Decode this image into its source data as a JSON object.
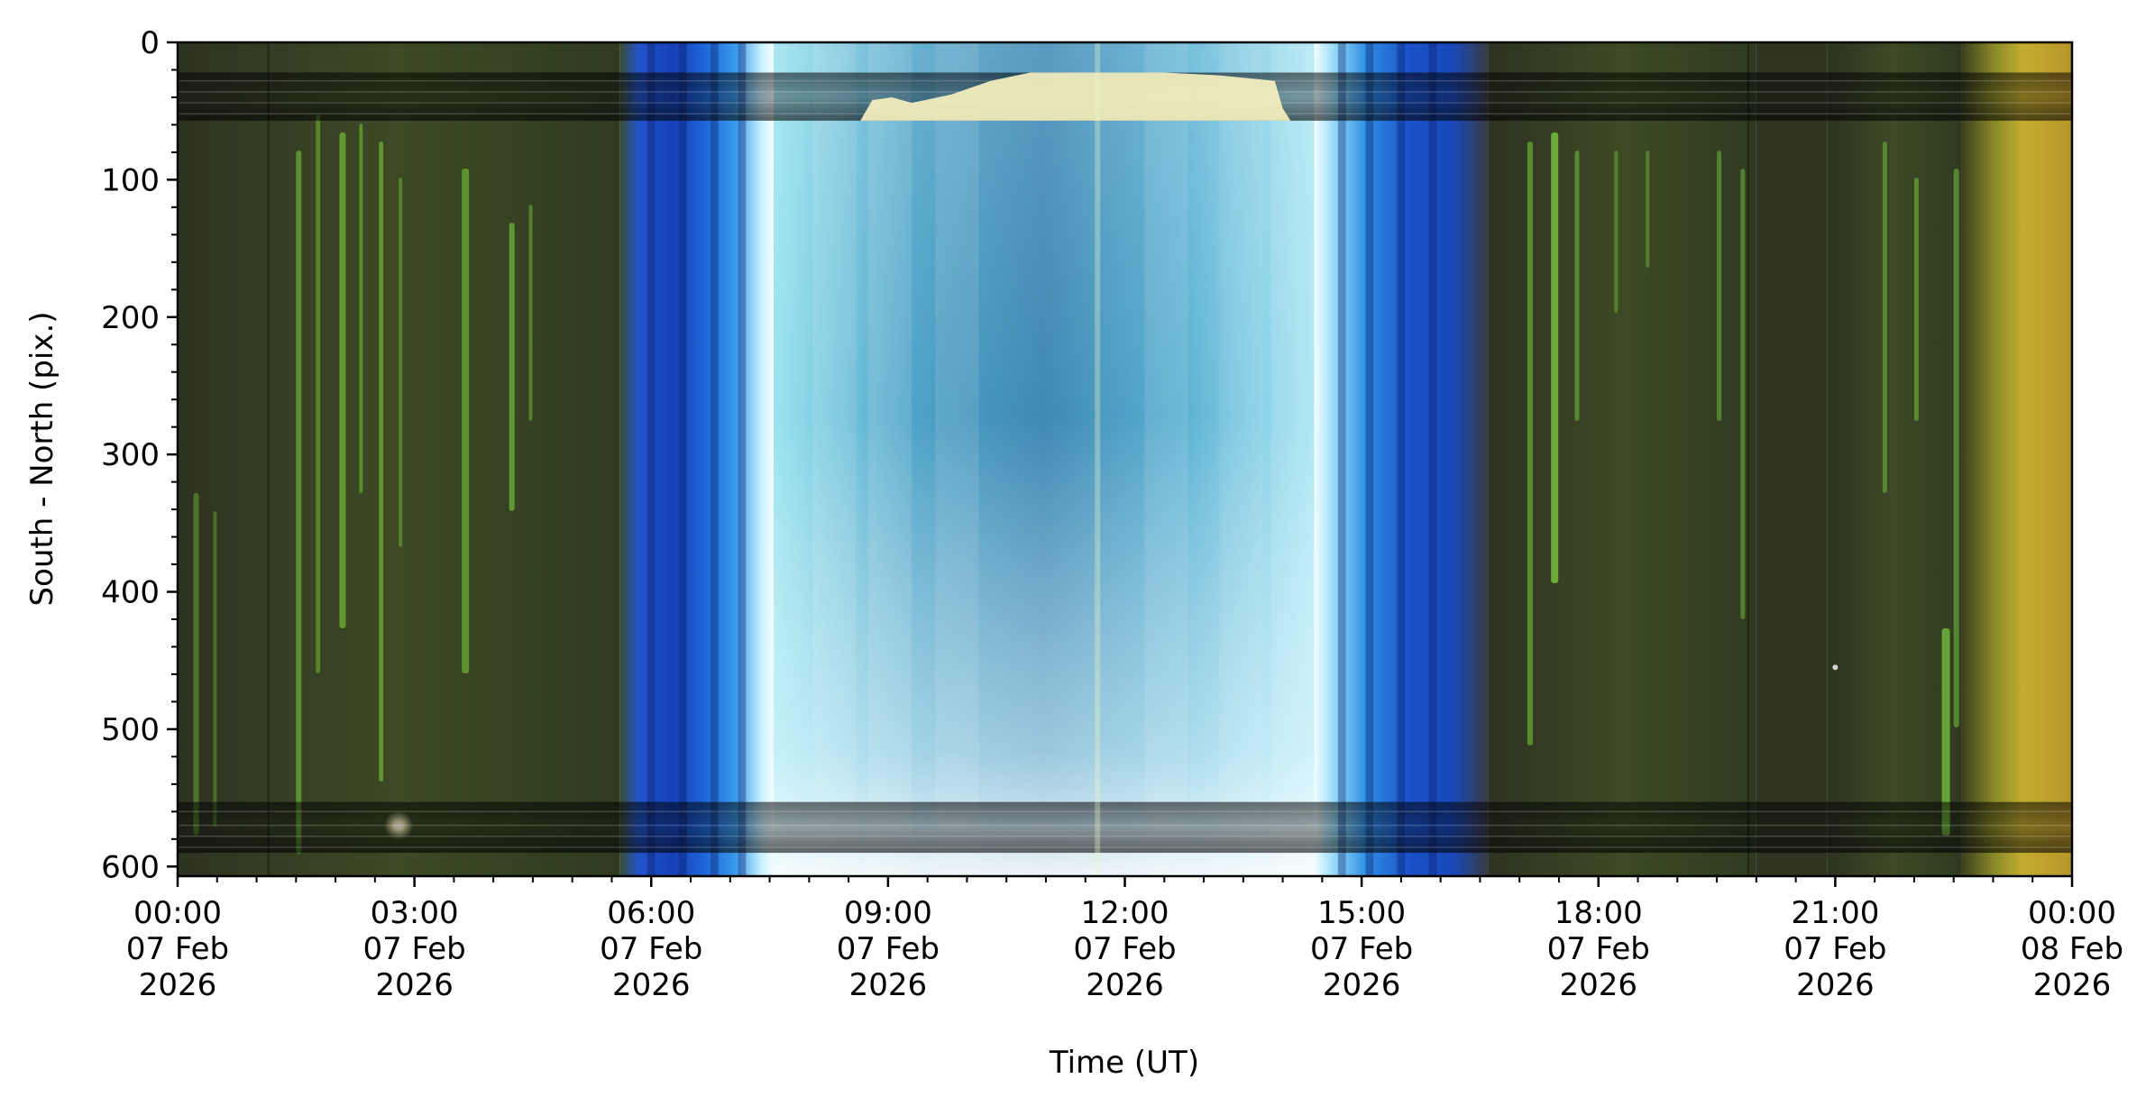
{
  "chart_data": {
    "type": "heatmap",
    "title": "",
    "xlabel": "Time (UT)",
    "ylabel": "South - North (pix.)",
    "x_range": [
      "2026-02-07T00:00",
      "2026-02-08T00:00"
    ],
    "ylim": [
      607,
      0
    ],
    "y_ticks": [
      0,
      100,
      200,
      300,
      400,
      500,
      600
    ],
    "x_ticks": [
      {
        "time": "00:00",
        "date": "07 Feb",
        "year": "2026"
      },
      {
        "time": "03:00",
        "date": "07 Feb",
        "year": "2026"
      },
      {
        "time": "06:00",
        "date": "07 Feb",
        "year": "2026"
      },
      {
        "time": "09:00",
        "date": "07 Feb",
        "year": "2026"
      },
      {
        "time": "12:00",
        "date": "07 Feb",
        "year": "2026"
      },
      {
        "time": "15:00",
        "date": "07 Feb",
        "year": "2026"
      },
      {
        "time": "18:00",
        "date": "07 Feb",
        "year": "2026"
      },
      {
        "time": "21:00",
        "date": "07 Feb",
        "year": "2026"
      },
      {
        "time": "00:00",
        "date": "08 Feb",
        "year": "2026"
      }
    ],
    "segments": [
      {
        "start": 0.0,
        "end": 5.6,
        "phase": "night-aurora",
        "color": "#3a4a22"
      },
      {
        "start": 5.6,
        "end": 7.55,
        "phase": "twilight",
        "color": "#1a48c8"
      },
      {
        "start": 7.55,
        "end": 14.4,
        "phase": "day",
        "color": "#6cc0dc"
      },
      {
        "start": 14.4,
        "end": 16.6,
        "phase": "twilight",
        "color": "#1a48c8"
      },
      {
        "start": 16.6,
        "end": 20.0,
        "phase": "night-aurora",
        "color": "#343a1e"
      },
      {
        "start": 20.0,
        "end": 20.9,
        "phase": "night",
        "color": "#2f3520"
      },
      {
        "start": 20.9,
        "end": 22.6,
        "phase": "night-aurora",
        "color": "#3a4422"
      },
      {
        "start": 22.6,
        "end": 24.0,
        "phase": "twilight-yellow",
        "color": "#b4a02a"
      }
    ],
    "aurora_color": "#7ed040",
    "band_color": "#1c1a10"
  }
}
